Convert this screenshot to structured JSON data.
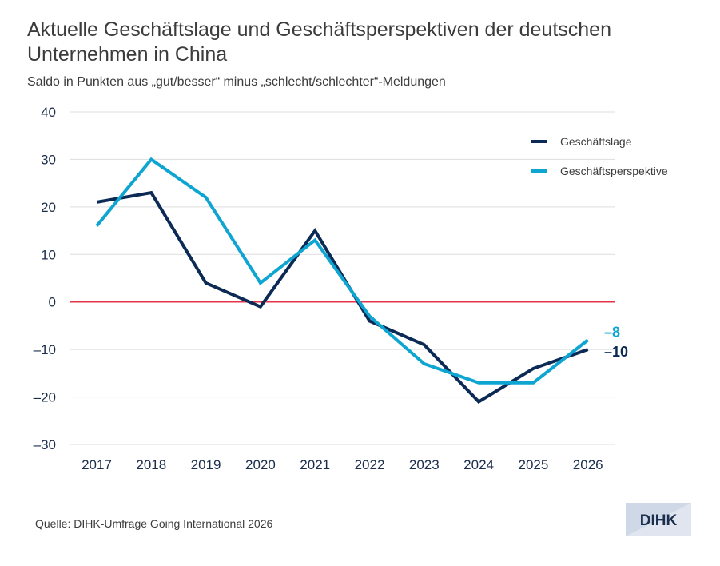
{
  "title": "Aktuelle Geschäftslage und Geschäftsperspektiven der deutschen Unternehmen in China",
  "subtitle": "Saldo in Punkten aus „gut/besser“ minus „schlecht/schlechter“-Meldungen",
  "source": "Quelle: DIHK-Umfrage Going International 2026",
  "logo": {
    "text": "DIHK",
    "icon": "dihk-logo",
    "bg_color": "#cfd8e6",
    "fg_color": "#1a2d4d"
  },
  "colors": {
    "zero_line": "#e3344a",
    "grid": "#dddddd",
    "tick_text": "#1a2d4d"
  },
  "chart_data": {
    "type": "line",
    "x": [
      "2017",
      "2018",
      "2019",
      "2020",
      "2021",
      "2022",
      "2023",
      "2024",
      "2025",
      "2026"
    ],
    "ylim": [
      -30,
      40
    ],
    "yticks": [
      "40",
      "30",
      "20",
      "10",
      "0",
      "–10",
      "–20",
      "–30"
    ],
    "ytick_values": [
      40,
      30,
      20,
      10,
      0,
      -10,
      -20,
      -30
    ],
    "grid": true,
    "legend_position": "top-right",
    "series": [
      {
        "name": "Geschäftslage",
        "color": "#0b2a55",
        "values": [
          21,
          23,
          4,
          -1,
          15,
          -4,
          -9,
          -21,
          -14,
          -10
        ],
        "end_label": "–10"
      },
      {
        "name": "Geschäftsperspektive",
        "color": "#0ea5d2",
        "values": [
          16,
          30,
          22,
          4,
          13,
          -3,
          -13,
          -17,
          -17,
          -8
        ],
        "end_label": "–8"
      }
    ]
  }
}
